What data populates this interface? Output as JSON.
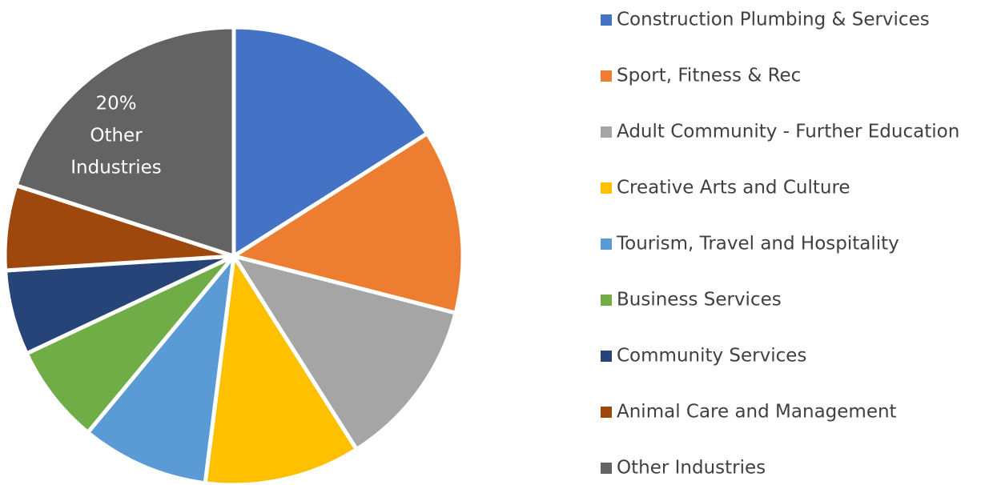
{
  "chart_data": {
    "type": "pie",
    "categories": [
      "Construction Plumbing & Services",
      "Sport, Fitness & Rec",
      "Adult Community - Further Education",
      "Creative Arts and Culture",
      "Tourism, Travel and Hospitality",
      "Business Services",
      "Community Services",
      "Animal Care and Management",
      "Other Industries"
    ],
    "values": [
      16,
      13,
      12,
      11,
      9,
      7,
      6,
      6,
      20
    ],
    "value_labels": [
      null,
      null,
      null,
      null,
      null,
      null,
      null,
      null,
      "20%"
    ],
    "colors": [
      "#4472c4",
      "#ed7d31",
      "#a5a5a5",
      "#ffc000",
      "#5b9bd5",
      "#70ad47",
      "#264478",
      "#9e480e",
      "#636363"
    ],
    "legend": "right"
  }
}
